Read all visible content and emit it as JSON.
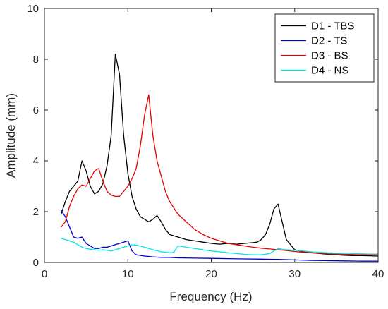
{
  "chart_data": {
    "type": "line",
    "xlabel": "Frequency (Hz)",
    "ylabel": "Amplitude (mm)",
    "xlim": [
      0,
      40
    ],
    "ylim": [
      0,
      10
    ],
    "xticks": [
      0,
      10,
      20,
      30,
      40
    ],
    "yticks": [
      0,
      2,
      4,
      6,
      8,
      10
    ],
    "grid": false,
    "legend_position": "top-right",
    "series": [
      {
        "name": "D1 - TBS",
        "color": "#000000",
        "x": [
          2,
          2.5,
          3,
          3.5,
          4,
          4.5,
          5,
          5.5,
          6,
          6.5,
          7,
          7.5,
          8,
          8.5,
          9,
          9.5,
          10,
          10.5,
          11,
          11.5,
          12,
          12.5,
          13,
          13.5,
          14,
          14.5,
          15,
          16,
          17,
          18,
          19,
          20,
          21,
          22,
          23,
          24,
          25,
          25.5,
          26,
          26.5,
          27,
          27.5,
          28,
          28.5,
          29,
          30,
          31,
          32,
          33,
          34,
          35,
          36,
          37,
          38,
          39,
          40
        ],
        "y": [
          1.9,
          2.4,
          2.8,
          3.0,
          3.2,
          4.0,
          3.6,
          3.0,
          2.7,
          2.8,
          3.1,
          3.8,
          5.0,
          8.2,
          7.4,
          5.0,
          3.5,
          2.6,
          2.1,
          1.8,
          1.7,
          1.6,
          1.7,
          1.85,
          1.6,
          1.3,
          1.1,
          1.0,
          0.9,
          0.85,
          0.8,
          0.75,
          0.72,
          0.75,
          0.72,
          0.75,
          0.78,
          0.8,
          0.9,
          1.1,
          1.5,
          2.1,
          2.3,
          1.6,
          0.9,
          0.5,
          0.42,
          0.38,
          0.35,
          0.32,
          0.3,
          0.28,
          0.27,
          0.27,
          0.26,
          0.25
        ]
      },
      {
        "name": "D2 - TS",
        "color": "#0000cc",
        "x": [
          2,
          2.5,
          3,
          3.5,
          4,
          4.5,
          5,
          5.5,
          6,
          6.5,
          7,
          7.5,
          8,
          8.5,
          9,
          9.5,
          10,
          10.5,
          11,
          12,
          13,
          14,
          15,
          16,
          18,
          20,
          22,
          24,
          26,
          28,
          30,
          32,
          34,
          36,
          38,
          40
        ],
        "y": [
          2.05,
          1.8,
          1.4,
          1.0,
          0.95,
          1.0,
          0.75,
          0.65,
          0.55,
          0.55,
          0.6,
          0.6,
          0.65,
          0.7,
          0.75,
          0.8,
          0.85,
          0.45,
          0.3,
          0.25,
          0.22,
          0.2,
          0.2,
          0.18,
          0.17,
          0.16,
          0.15,
          0.14,
          0.13,
          0.12,
          0.1,
          0.08,
          0.07,
          0.06,
          0.05,
          0.05
        ]
      },
      {
        "name": "D3 - BS",
        "color": "#e60000",
        "x": [
          2,
          2.5,
          3,
          3.5,
          4,
          4.5,
          5,
          5.5,
          6,
          6.5,
          7,
          7.5,
          8,
          8.5,
          9,
          9.5,
          10,
          10.5,
          11,
          11.5,
          12,
          12.5,
          13,
          13.5,
          14,
          14.5,
          15,
          16,
          17,
          18,
          19,
          20,
          21,
          22,
          23,
          24,
          25,
          26,
          27,
          28,
          29,
          30,
          31,
          32,
          33,
          34,
          35,
          36,
          37,
          38,
          39,
          40
        ],
        "y": [
          1.4,
          1.6,
          2.2,
          2.6,
          2.9,
          3.05,
          3.0,
          3.3,
          3.6,
          3.7,
          3.2,
          2.8,
          2.65,
          2.6,
          2.6,
          2.8,
          3.0,
          3.3,
          3.7,
          4.6,
          5.8,
          6.6,
          5.0,
          4.0,
          3.4,
          2.8,
          2.4,
          1.9,
          1.6,
          1.3,
          1.1,
          0.95,
          0.85,
          0.75,
          0.7,
          0.65,
          0.6,
          0.56,
          0.53,
          0.5,
          0.47,
          0.43,
          0.4,
          0.38,
          0.36,
          0.34,
          0.33,
          0.32,
          0.31,
          0.3,
          0.3,
          0.3
        ]
      },
      {
        "name": "D4 - NS",
        "color": "#00e5e5",
        "x": [
          2,
          2.5,
          3,
          3.5,
          4,
          4.5,
          5,
          5.5,
          6,
          6.5,
          7,
          7.5,
          8,
          8.5,
          9,
          9.5,
          10,
          10.5,
          11,
          12,
          13,
          14,
          15,
          15.5,
          16,
          17,
          18,
          19,
          20,
          21,
          22,
          23,
          24,
          25,
          26,
          27,
          27.5,
          28,
          28.5,
          29,
          30,
          31,
          32,
          33,
          34,
          35,
          36,
          37,
          38,
          39,
          40
        ],
        "y": [
          0.95,
          0.9,
          0.85,
          0.8,
          0.7,
          0.6,
          0.55,
          0.52,
          0.5,
          0.48,
          0.5,
          0.48,
          0.45,
          0.5,
          0.55,
          0.6,
          0.65,
          0.7,
          0.68,
          0.6,
          0.5,
          0.42,
          0.38,
          0.4,
          0.65,
          0.6,
          0.55,
          0.5,
          0.45,
          0.42,
          0.38,
          0.35,
          0.32,
          0.3,
          0.3,
          0.35,
          0.45,
          0.55,
          0.52,
          0.5,
          0.48,
          0.45,
          0.42,
          0.4,
          0.38,
          0.37,
          0.36,
          0.35,
          0.34,
          0.33,
          0.33
        ]
      }
    ]
  }
}
